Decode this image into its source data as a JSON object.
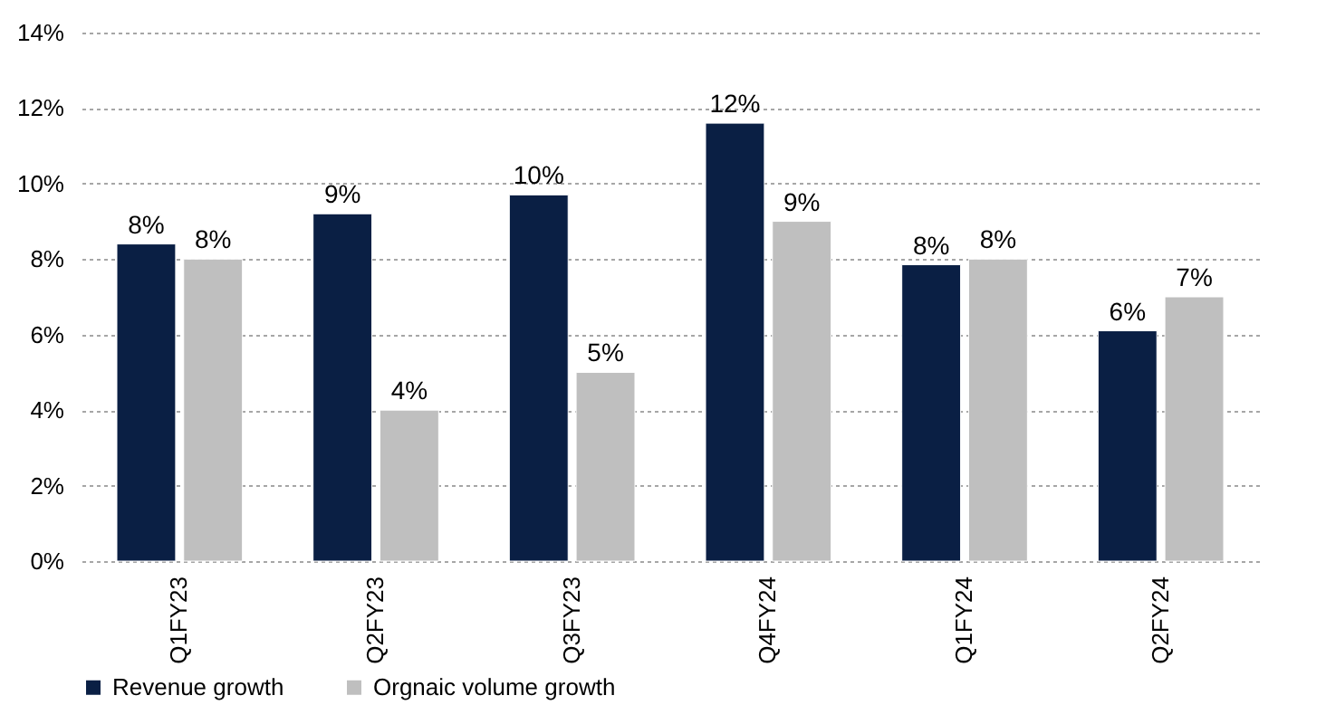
{
  "chart_data": {
    "type": "bar",
    "categories": [
      "Q1FY23",
      "Q2FY23",
      "Q3FY23",
      "Q4FY24",
      "Q1FY24",
      "Q2FY24"
    ],
    "series": [
      {
        "name": "Revenue growth",
        "color": "#0a1f44",
        "values": [
          8.4,
          9.2,
          9.7,
          11.6,
          7.85,
          6.1
        ],
        "value_labels": [
          "8%",
          "9%",
          "10%",
          "12%",
          "8%",
          "6%"
        ]
      },
      {
        "name": "Orgnaic volume growth",
        "color": "#bfbfbf",
        "values": [
          8,
          4,
          5,
          9,
          8,
          7
        ],
        "value_labels": [
          "8%",
          "4%",
          "5%",
          "9%",
          "8%",
          "7%"
        ]
      }
    ],
    "ylim": [
      0,
      14
    ],
    "yticks": [
      {
        "value": 0,
        "label": "0%"
      },
      {
        "value": 2,
        "label": "2%"
      },
      {
        "value": 4,
        "label": "4%"
      },
      {
        "value": 6,
        "label": "6%"
      },
      {
        "value": 8,
        "label": "8%"
      },
      {
        "value": 10,
        "label": "10%"
      },
      {
        "value": 12,
        "label": "12%"
      },
      {
        "value": 14,
        "label": "14%"
      }
    ],
    "grid": "y",
    "legend": "bottom"
  }
}
